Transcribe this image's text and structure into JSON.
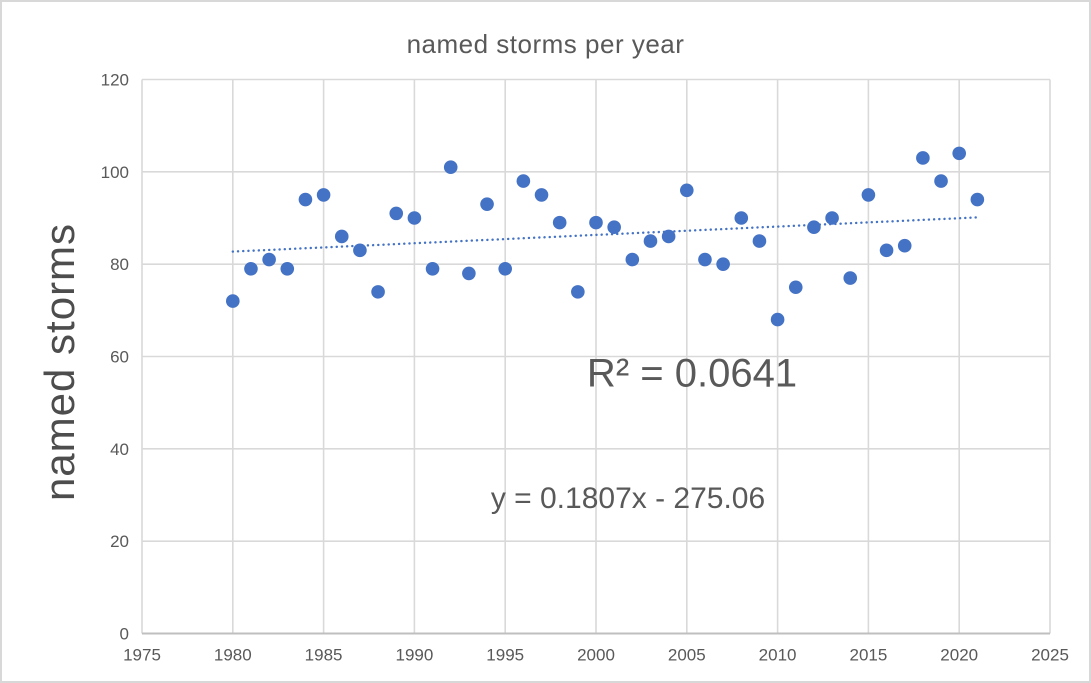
{
  "chart": {
    "title": "named storms per year",
    "y_axis_title": "named storms",
    "r2_label": "R² = 0.0641",
    "equation_label": "y = 0.1807x - 275.06"
  },
  "chart_data": {
    "type": "scatter",
    "title": "named storms per year",
    "xlabel": "",
    "ylabel": "named storms",
    "x": [
      1980,
      1981,
      1982,
      1983,
      1984,
      1985,
      1986,
      1987,
      1988,
      1989,
      1990,
      1991,
      1992,
      1993,
      1994,
      1995,
      1996,
      1997,
      1998,
      1999,
      2000,
      2001,
      2002,
      2003,
      2004,
      2005,
      2006,
      2007,
      2008,
      2009,
      2010,
      2011,
      2012,
      2013,
      2014,
      2015,
      2016,
      2017,
      2018,
      2019,
      2020,
      2021
    ],
    "y": [
      72,
      79,
      81,
      79,
      94,
      95,
      86,
      83,
      74,
      91,
      90,
      79,
      101,
      78,
      93,
      79,
      98,
      95,
      89,
      74,
      89,
      88,
      81,
      85,
      86,
      96,
      81,
      80,
      90,
      85,
      68,
      75,
      88,
      90,
      77,
      95,
      83,
      84,
      103,
      98,
      104,
      94
    ],
    "xlim": [
      1975,
      2025
    ],
    "ylim": [
      0,
      120
    ],
    "xticks": [
      1975,
      1980,
      1985,
      1990,
      1995,
      2000,
      2005,
      2010,
      2015,
      2020,
      2025
    ],
    "yticks": [
      0,
      20,
      40,
      60,
      80,
      100,
      120
    ],
    "grid": true,
    "legend": "none",
    "trendline": {
      "type": "linear",
      "slope": 0.1807,
      "intercept": -275.06,
      "r_squared": 0.0641,
      "equation_text": "y = 0.1807x - 275.06",
      "r2_text": "R² = 0.0641",
      "line_style": "dotted",
      "x_range": [
        1980,
        2021
      ]
    },
    "colors": {
      "point": "#4472C4",
      "trendline": "#4472C4",
      "gridline": "#D9D9D9",
      "axis_line": "#BFBFBF",
      "text": "#595959"
    }
  }
}
